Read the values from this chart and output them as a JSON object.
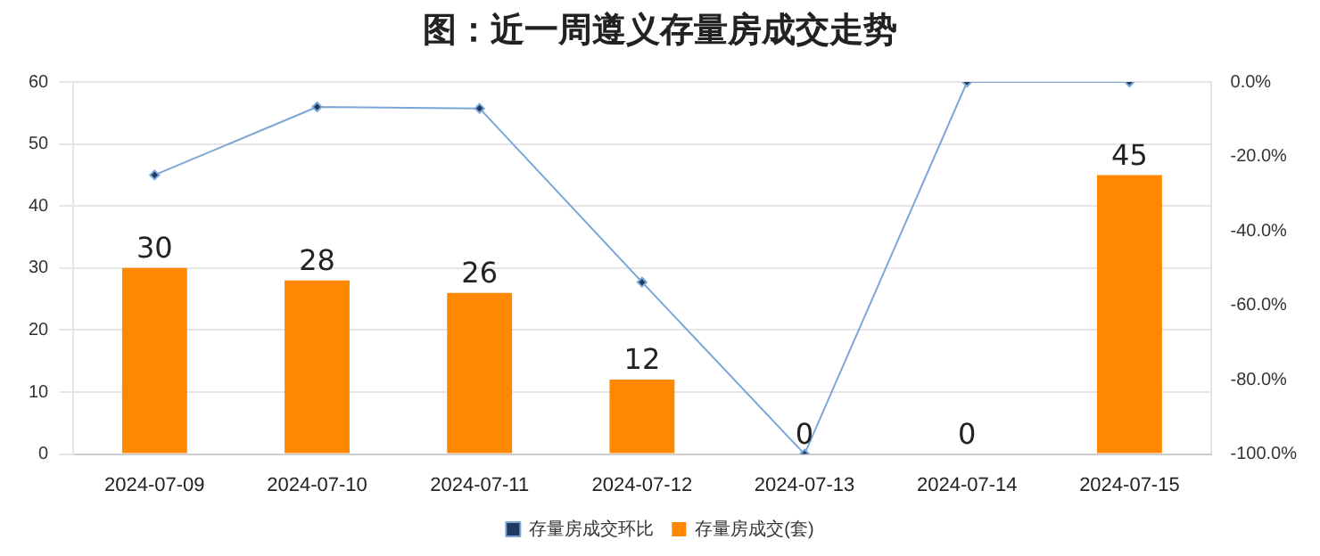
{
  "chart_data": {
    "type": "bar",
    "title": "图：近一周遵义存量房成交走势",
    "categories": [
      "2024-07-09",
      "2024-07-10",
      "2024-07-11",
      "2024-07-12",
      "2024-07-13",
      "2024-07-14",
      "2024-07-15"
    ],
    "series": [
      {
        "name": "存量房成交(套)",
        "color": "#ff8800",
        "values": [
          30,
          28,
          26,
          12,
          0,
          0,
          45
        ],
        "value_labels": [
          "30",
          "28",
          "26",
          "12",
          "0",
          "0",
          "45"
        ]
      },
      {
        "name": "存量房成交环比",
        "type": "line",
        "axis": "y2",
        "color": "#7ba7d7",
        "values": [
          -25,
          -6.7,
          -7.1,
          -53.8,
          -100,
          0,
          0
        ]
      }
    ],
    "ylim": [
      0,
      60
    ],
    "yticks": [
      0,
      10,
      20,
      30,
      40,
      50,
      60
    ],
    "y2lim": [
      -100,
      0
    ],
    "y2ticks": [
      {
        "value": -100,
        "label": "-100.0%"
      },
      {
        "value": -80,
        "label": "-80.0%"
      },
      {
        "value": -60,
        "label": "-60.0%"
      },
      {
        "value": -40,
        "label": "-40.0%"
      },
      {
        "value": -20,
        "label": "-20.0%"
      },
      {
        "value": 0,
        "label": "0.0%"
      }
    ],
    "grid": "y",
    "legend": "bottom",
    "marker": "diamond"
  }
}
